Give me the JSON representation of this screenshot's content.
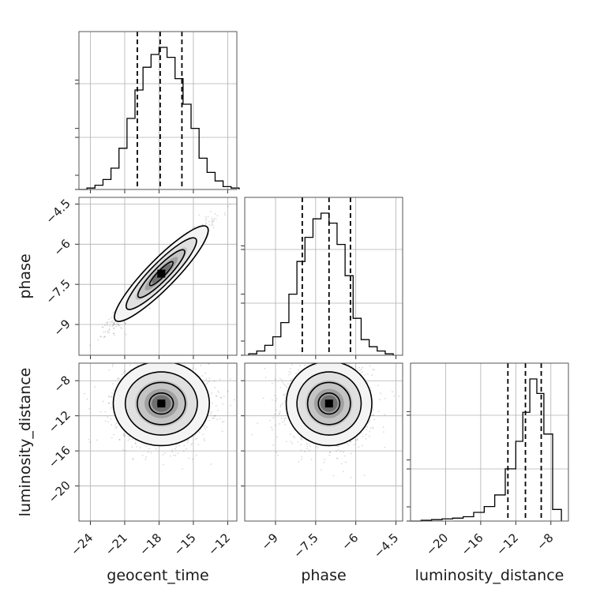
{
  "chart_data": {
    "type": "corner",
    "parameters": [
      {
        "name": "geocent_time",
        "label": "geocent_time",
        "range": [
          -25,
          -11.2
        ],
        "ticks": [
          -24,
          -21,
          -18,
          -15,
          -12
        ],
        "quantiles": [
          -19.9,
          -17.9,
          -16.0
        ],
        "histogram": {
          "edges": [
            -25,
            -24.3,
            -23.6,
            -22.9,
            -22.2,
            -21.5,
            -20.8,
            -20.1,
            -19.4,
            -18.7,
            -18.0,
            -17.3,
            -16.6,
            -15.9,
            -15.2,
            -14.5,
            -13.8,
            -13.1,
            -12.4,
            -11.7,
            -11.0
          ],
          "counts": [
            0.0,
            0.01,
            0.03,
            0.07,
            0.15,
            0.29,
            0.5,
            0.7,
            0.86,
            0.95,
            1.0,
            0.93,
            0.78,
            0.6,
            0.43,
            0.22,
            0.12,
            0.06,
            0.02,
            0.01
          ]
        }
      },
      {
        "name": "phase",
        "label": "phase",
        "range": [
          -10.15,
          -4.25
        ],
        "ticks": [
          -9.0,
          -7.5,
          -6.0,
          -4.5
        ],
        "quantiles": [
          -8.0,
          -7.0,
          -6.2
        ],
        "histogram": {
          "edges": [
            -10.0,
            -9.7,
            -9.4,
            -9.1,
            -8.8,
            -8.5,
            -8.2,
            -7.9,
            -7.6,
            -7.3,
            -7.0,
            -6.7,
            -6.4,
            -6.1,
            -5.8,
            -5.5,
            -5.2,
            -4.9,
            -4.6
          ],
          "counts": [
            0.01,
            0.03,
            0.07,
            0.13,
            0.23,
            0.43,
            0.66,
            0.83,
            0.96,
            1.0,
            0.93,
            0.78,
            0.56,
            0.26,
            0.11,
            0.06,
            0.03,
            0.01
          ]
        }
      },
      {
        "name": "luminosity_distance",
        "label": "luminosity_distance",
        "range": [
          -24,
          -6
        ],
        "ticks": [
          -20,
          -16,
          -12,
          -8
        ],
        "quantiles": [
          -12.9,
          -10.9,
          -9.1
        ],
        "histogram": {
          "edges": [
            -24,
            -22.8,
            -21.6,
            -20.4,
            -19.2,
            -18.0,
            -16.8,
            -15.6,
            -14.4,
            -13.2,
            -12.0,
            -11.2,
            -10.4,
            -9.6,
            -8.8,
            -7.8,
            -6.8
          ],
          "counts": [
            0.0,
            0.005,
            0.01,
            0.015,
            0.02,
            0.03,
            0.06,
            0.1,
            0.18,
            0.36,
            0.55,
            0.75,
            0.98,
            0.88,
            0.6,
            0.08
          ]
        }
      }
    ],
    "pairs": [
      {
        "x": "geocent_time",
        "y": "phase",
        "center": [
          -17.8,
          -7.1
        ],
        "correlation": 0.97,
        "sigma": [
          2.0,
          0.9
        ]
      },
      {
        "x": "geocent_time",
        "y": "luminosity_distance",
        "center": [
          -17.8,
          -10.6
        ],
        "correlation": 0.0,
        "sigma": [
          2.1,
          2.4
        ]
      },
      {
        "x": "phase",
        "y": "luminosity_distance",
        "center": [
          -7.0,
          -10.6
        ],
        "correlation": 0.0,
        "sigma": [
          0.8,
          2.4
        ]
      }
    ],
    "grid": true
  }
}
